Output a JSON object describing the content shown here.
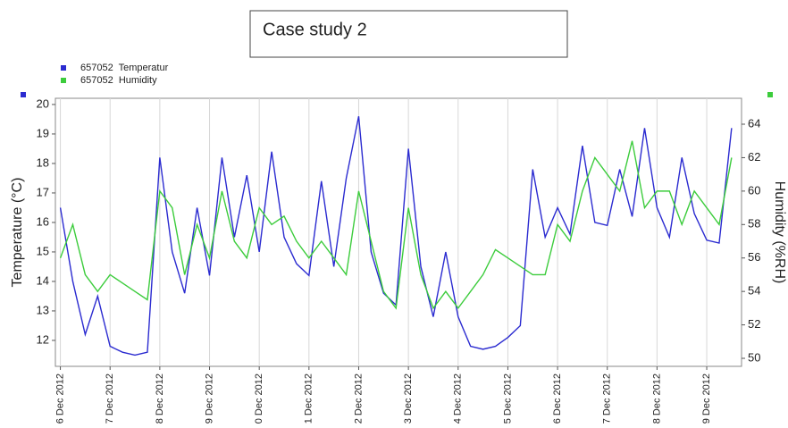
{
  "chart_data": {
    "type": "line",
    "title": "Case study 2",
    "y_label": "Temperature (°C)",
    "y2_label": "Humidity (%RH)",
    "x": [
      0,
      0.25,
      0.5,
      0.75,
      1,
      1.25,
      1.5,
      1.75,
      2,
      2.25,
      2.5,
      2.75,
      3,
      3.25,
      3.5,
      3.75,
      4,
      4.25,
      4.5,
      4.75,
      5,
      5.25,
      5.5,
      5.75,
      6,
      6.25,
      6.5,
      6.75,
      7,
      7.25,
      7.5,
      7.75,
      8,
      8.25,
      8.5,
      8.75,
      9,
      9.25,
      9.5,
      9.75,
      10,
      10.25,
      10.5,
      10.75,
      11,
      11.25,
      11.5,
      11.75,
      12,
      12.25,
      12.5,
      12.75,
      13,
      13.25,
      13.5
    ],
    "series": [
      {
        "name": "657052  Temperatur",
        "color": "#2b2bd0",
        "axis": "y",
        "values": [
          16.5,
          14,
          12.2,
          13.5,
          11.8,
          11.6,
          11.5,
          11.6,
          18.2,
          15,
          13.6,
          16.5,
          14.2,
          18.2,
          15.5,
          17.6,
          15,
          18.4,
          15.5,
          14.6,
          14.2,
          17.4,
          14.5,
          17.5,
          19.6,
          15,
          13.6,
          13.2,
          18.5,
          14.5,
          12.8,
          15,
          12.8,
          11.8,
          11.7,
          11.8,
          12.1,
          12.5,
          17.8,
          15.5,
          16.5,
          15.6,
          18.6,
          16,
          15.9,
          17.8,
          16.2,
          19.2,
          16.5,
          15.5,
          18.2,
          16.3,
          15.4,
          15.3,
          19.2
        ]
      },
      {
        "name": "657052  Humidity",
        "color": "#3ccc3c",
        "axis": "y2",
        "values": [
          56,
          58,
          55,
          54,
          55,
          54.5,
          54,
          53.5,
          60,
          59,
          55,
          58,
          56,
          60,
          57,
          56,
          59,
          58,
          58.5,
          57,
          56,
          57,
          56,
          55,
          60,
          57,
          54,
          53,
          59,
          55,
          53,
          54,
          53,
          54,
          55,
          56.5,
          56,
          55.5,
          55,
          55,
          58,
          57,
          60,
          62,
          61,
          60,
          63,
          59,
          60,
          60,
          58,
          60,
          59,
          58,
          62
        ]
      }
    ],
    "xlim": [
      -0.1,
      13.7
    ],
    "xticks": [
      {
        "value": 0,
        "label": "6 Dec 2012"
      },
      {
        "value": 1,
        "label": "7 Dec 2012"
      },
      {
        "value": 2,
        "label": "8 Dec 2012"
      },
      {
        "value": 3,
        "label": "9 Dec 2012"
      },
      {
        "value": 4,
        "label": "0 Dec 2012"
      },
      {
        "value": 5,
        "label": "1 Dec 2012"
      },
      {
        "value": 6,
        "label": "2 Dec 2012"
      },
      {
        "value": 7,
        "label": "3 Dec 2012"
      },
      {
        "value": 8,
        "label": "4 Dec 2012"
      },
      {
        "value": 9,
        "label": "5 Dec 2012"
      },
      {
        "value": 10,
        "label": "6 Dec 2012"
      },
      {
        "value": 11,
        "label": "7 Dec 2012"
      },
      {
        "value": 12,
        "label": "8 Dec 2012"
      },
      {
        "value": 13,
        "label": "9 Dec 2012"
      }
    ],
    "ylim": [
      11.12,
      20.21
    ],
    "yticks": [
      12,
      13,
      14,
      15,
      16,
      17,
      18,
      19,
      20
    ],
    "y2lim": [
      49.52,
      65.55
    ],
    "y2ticks": [
      50,
      52,
      54,
      56,
      58,
      60,
      62,
      64
    ],
    "grid": true
  }
}
